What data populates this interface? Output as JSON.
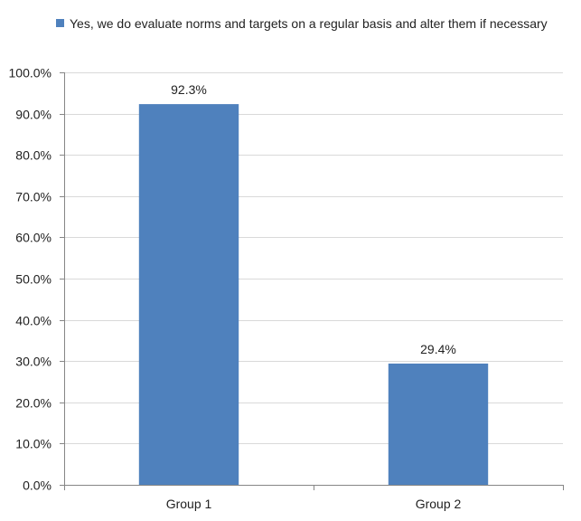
{
  "chart_data": {
    "type": "bar",
    "title": "",
    "xlabel": "",
    "ylabel": "",
    "categories": [
      "Group 1",
      "Group 2"
    ],
    "series": [
      {
        "name": "Yes, we do evaluate norms and targets on a regular basis and alter them if necessary",
        "values": [
          92.3,
          29.4
        ],
        "data_labels": [
          "92.3%",
          "29.4%"
        ],
        "color": "#4f81bd"
      }
    ],
    "ylim": [
      0,
      100
    ],
    "yticks": [
      "0.0%",
      "10.0%",
      "20.0%",
      "30.0%",
      "40.0%",
      "50.0%",
      "60.0%",
      "70.0%",
      "80.0%",
      "90.0%",
      "100.0%"
    ],
    "grid": true,
    "legend_position": "top"
  },
  "colors": {
    "bar": "#4f81bd",
    "grid": "#d9d9d9",
    "axis": "#868686"
  }
}
